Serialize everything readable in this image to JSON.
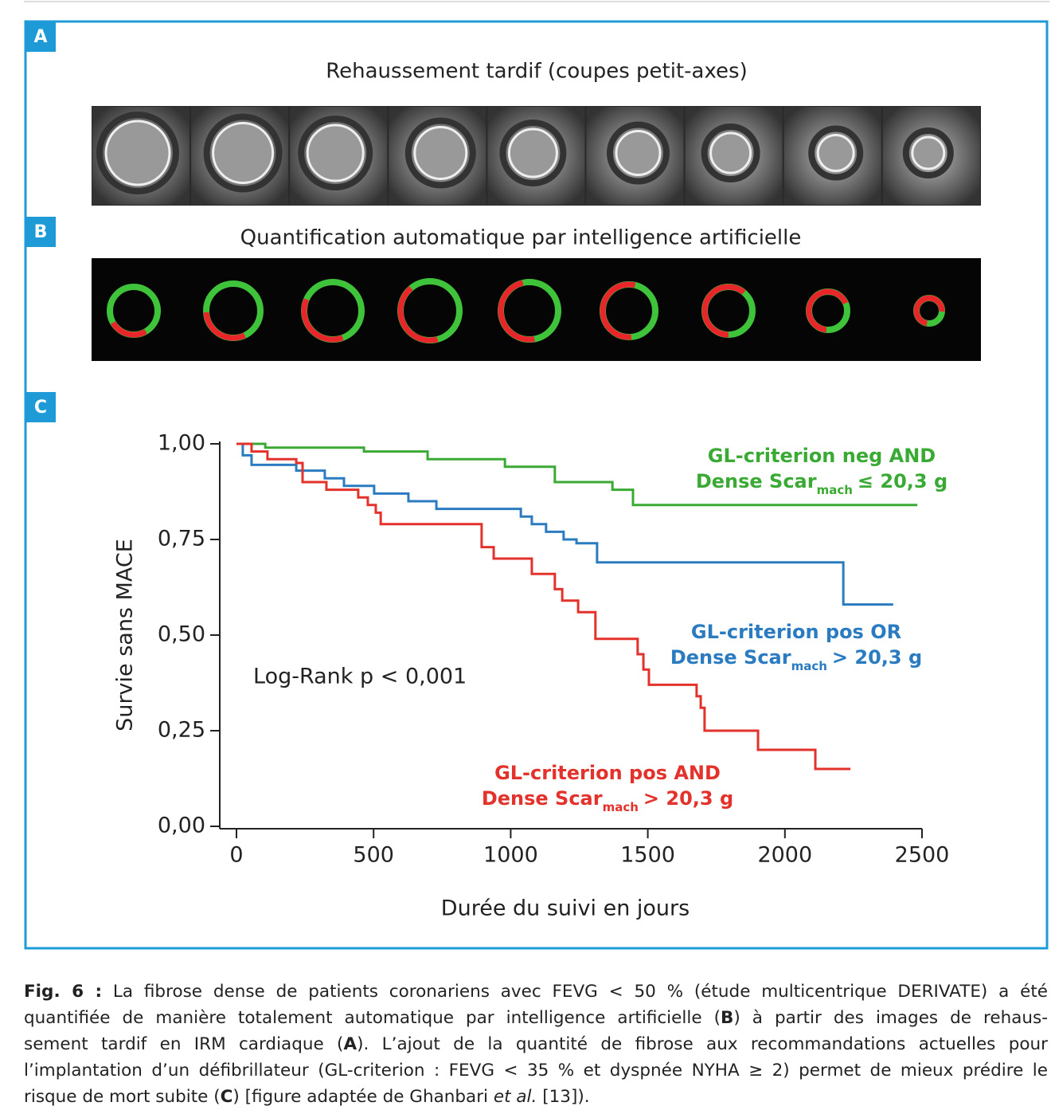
{
  "panels": {
    "a": {
      "label": "A",
      "title": "Rehaussement tardif (coupes petit-axes)"
    },
    "b": {
      "label": "B",
      "title": "Quantification automatique par intelligence artificielle"
    },
    "c": {
      "label": "C"
    }
  },
  "chart_data": {
    "type": "step",
    "ylabel": "Survie sans MACE",
    "xlabel": "Durée du suivi en jours",
    "annotation": "Log-Rank p < 0,001",
    "xlim": [
      0,
      2500
    ],
    "ylim": [
      0,
      1
    ],
    "xticks": [
      0,
      500,
      1000,
      1500,
      2000,
      2500
    ],
    "yticks": [
      {
        "value": 0,
        "label": "0,00"
      },
      {
        "value": 0.25,
        "label": "0,25"
      },
      {
        "value": 0.5,
        "label": "0,50"
      },
      {
        "value": 0.75,
        "label": "0,75"
      },
      {
        "value": 1,
        "label": "1,00"
      }
    ],
    "series": [
      {
        "name": {
          "line1": "GL-criterion neg AND",
          "line2": "Dense Scar",
          "sub": "mach",
          "rest": "≤ 20,3 g"
        },
        "color": "#3aaa35",
        "x": [
          0,
          105,
          465,
          697,
          979,
          1161,
          1371,
          1446,
          2483
        ],
        "values": [
          1.0,
          0.99,
          0.98,
          0.96,
          0.94,
          0.9,
          0.88,
          0.84,
          0.84
        ]
      },
      {
        "name": {
          "line1": "GL-criterion pos OR",
          "line2": "Dense Scar",
          "sub": "mach",
          "rest": "> 20,3 g"
        },
        "color": "#2a7bc0",
        "x": [
          0,
          23,
          55,
          218,
          322,
          392,
          502,
          627,
          729,
          1037,
          1077,
          1129,
          1193,
          1240,
          1315,
          2213,
          2395
        ],
        "values": [
          1.0,
          0.97,
          0.945,
          0.93,
          0.91,
          0.89,
          0.87,
          0.85,
          0.83,
          0.81,
          0.79,
          0.77,
          0.75,
          0.74,
          0.69,
          0.58,
          0.58
        ]
      },
      {
        "name": {
          "line1": "GL-criterion pos AND",
          "line2": "Dense Scar",
          "sub": "mach",
          "rest": "> 20,3 g"
        },
        "color": "#e3322b",
        "x": [
          0,
          55,
          113,
          218,
          241,
          328,
          444,
          479,
          508,
          526,
          894,
          938,
          1077,
          1161,
          1188,
          1246,
          1309,
          1463,
          1484,
          1504,
          1678,
          1693,
          1707,
          1902,
          2111,
          2239
        ],
        "values": [
          1.0,
          0.98,
          0.96,
          0.95,
          0.9,
          0.88,
          0.86,
          0.84,
          0.82,
          0.79,
          0.73,
          0.7,
          0.66,
          0.62,
          0.59,
          0.56,
          0.49,
          0.45,
          0.41,
          0.37,
          0.34,
          0.31,
          0.25,
          0.2,
          0.15,
          0.15
        ]
      }
    ]
  },
  "caption": {
    "lines": [
      [
        {
          "text": "Fig. 6 :",
          "style": "bold"
        },
        {
          "text": " La fibrose dense de patients coronariens avec FEVG < 50 % (étude multicentrique DERIVATE) a été"
        }
      ],
      [
        {
          "text": "quantifiée de manière totalement automatique par intelligence artificielle ("
        },
        {
          "text": "B",
          "style": "bold"
        },
        {
          "text": ") à partir des images de rehaus-"
        }
      ],
      [
        {
          "text": "sement tardif en IRM cardiaque ("
        },
        {
          "text": "A",
          "style": "bold"
        },
        {
          "text": "). L’ajout de la quantité de fibrose aux recommandations actuelles pour"
        }
      ],
      [
        {
          "text": "l’implantation d’un défibrillateur (GL-criterion : FEVG < 35 % et dyspnée NYHA ≥ 2) permet de mieux prédire le"
        }
      ],
      [
        {
          "text": "risque de mort subite ("
        },
        {
          "text": "C",
          "style": "bold"
        },
        {
          "text": ") [figure adaptée de Ghanbari "
        },
        {
          "text": "et al.",
          "style": "italic"
        },
        {
          "text": " [13])."
        }
      ]
    ]
  }
}
